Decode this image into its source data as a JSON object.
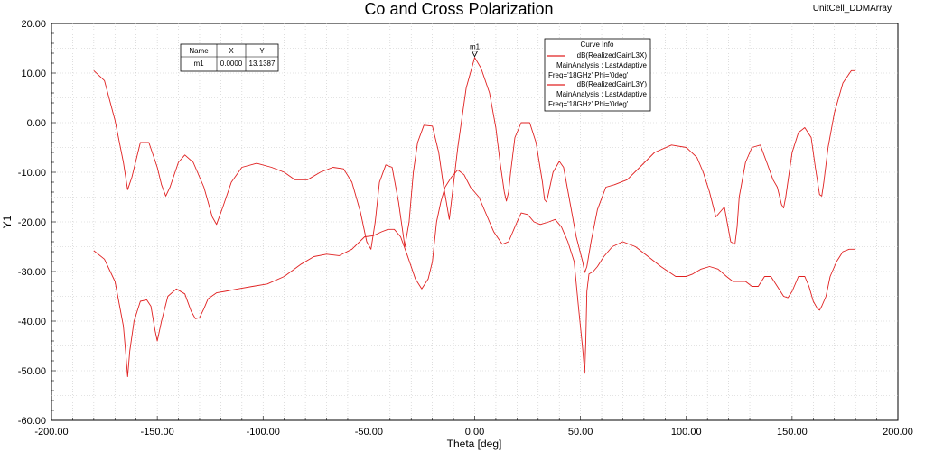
{
  "design_name": "UnitCell_DDMArray",
  "chart_data": {
    "type": "line",
    "title": "Co and Cross Polarization",
    "xlabel": "Theta [deg]",
    "ylabel": "Y1",
    "xlim": [
      -200,
      200
    ],
    "ylim": [
      -60,
      20
    ],
    "x_ticks": [
      -200,
      -150,
      -100,
      -50,
      0,
      50,
      100,
      150,
      200
    ],
    "x_tick_labels": [
      "-200.00",
      "-150.00",
      "-100.00",
      "-50.00",
      "0.00",
      "50.00",
      "100.00",
      "150.00",
      "200.00"
    ],
    "y_ticks": [
      20,
      10,
      0,
      -10,
      -20,
      -30,
      -40,
      -50,
      -60
    ],
    "y_tick_labels": [
      "20.00",
      "10.00",
      "0.00",
      "-10.00",
      "-20.00",
      "-30.00",
      "-40.00",
      "-50.00",
      "-60.00"
    ],
    "grid": true,
    "line_color": "#e02020",
    "series": [
      {
        "name": "dB(RealizedGainL3X)",
        "x": [
          -180,
          -175,
          -170,
          -166,
          -164,
          -162,
          -158,
          -154,
          -150,
          -148,
          -146,
          -144,
          -140,
          -137,
          -133,
          -128,
          -124,
          -122,
          -119,
          -115,
          -110,
          -103,
          -96,
          -90,
          -85,
          -79,
          -73,
          -67,
          -62,
          -58,
          -54,
          -51,
          -49,
          -47,
          -45,
          -42,
          -39,
          -36,
          -33,
          -31,
          -29,
          -27,
          -24,
          -20,
          -17,
          -15,
          -12,
          -8,
          -4,
          0,
          3,
          7,
          10,
          12,
          14,
          15,
          16,
          17,
          19,
          22,
          26,
          29,
          32,
          33,
          34,
          35,
          37,
          40,
          42,
          45,
          48,
          51,
          52,
          53,
          55,
          58,
          62,
          66,
          72,
          78,
          85,
          93,
          100,
          105,
          108,
          111,
          114,
          118,
          121,
          123,
          124,
          125,
          128,
          131,
          135,
          138,
          141,
          143,
          145,
          146,
          147,
          150,
          153,
          156,
          159,
          161,
          163,
          164,
          165,
          167,
          170,
          174,
          178,
          180
        ],
        "y": [
          10.5,
          8.5,
          0.5,
          -8,
          -13.5,
          -11,
          -4,
          -4,
          -9,
          -12.5,
          -14.8,
          -13,
          -8,
          -6.5,
          -8,
          -13,
          -19,
          -20.5,
          -17,
          -12,
          -9,
          -8.2,
          -9,
          -10,
          -11.5,
          -11.5,
          -10,
          -9,
          -9.3,
          -12,
          -18,
          -24,
          -25.5,
          -20,
          -12,
          -8.5,
          -9,
          -16,
          -25,
          -20,
          -10,
          -4,
          -0.5,
          -0.7,
          -6,
          -12,
          -19.5,
          -5,
          7,
          13.1387,
          11,
          6,
          -1,
          -8,
          -14,
          -15.8,
          -14,
          -10,
          -3,
          0,
          0,
          -4,
          -12,
          -15.5,
          -16,
          -14,
          -10,
          -7.8,
          -9,
          -16,
          -23,
          -28,
          -30.2,
          -29,
          -24,
          -17.5,
          -13,
          -12.5,
          -11.5,
          -9,
          -6,
          -4.5,
          -5,
          -7,
          -10,
          -14,
          -19,
          -17,
          -24,
          -24.5,
          -21,
          -15,
          -8,
          -5,
          -4.5,
          -8,
          -11.5,
          -13,
          -16.5,
          -17.2,
          -15,
          -6,
          -2,
          -1,
          -3,
          -9,
          -14.5,
          -14.8,
          -12,
          -5,
          2,
          8,
          10.5,
          10.5
        ]
      },
      {
        "name": "dB(RealizedGainL3Y)",
        "x": [
          -180,
          -175,
          -170,
          -166,
          -165,
          -164,
          -163,
          -161,
          -158,
          -155,
          -153,
          -151,
          -150,
          -148,
          -145,
          -141,
          -137,
          -134,
          -132,
          -130,
          -128,
          -126,
          -122,
          -118,
          -112,
          -105,
          -98,
          -90,
          -82,
          -76,
          -70,
          -64,
          -58,
          -52,
          -48,
          -44,
          -41,
          -38,
          -35,
          -32,
          -30,
          -28,
          -25,
          -22,
          -20,
          -19,
          -18,
          -16,
          -14,
          -11,
          -8,
          -5,
          -2,
          2,
          5,
          9,
          13,
          16,
          18,
          20,
          22,
          25,
          28,
          31,
          35,
          38,
          41,
          44,
          47,
          49,
          51,
          52,
          52.5,
          53,
          54,
          56,
          58,
          61,
          65,
          70,
          76,
          82,
          88,
          95,
          100,
          103,
          107,
          111,
          115,
          119,
          122,
          125,
          128,
          131,
          134,
          137,
          140,
          143,
          146,
          148,
          150,
          153,
          156,
          158,
          160,
          162,
          163,
          164,
          166,
          168,
          171,
          174,
          177,
          180
        ],
        "y": [
          -25.8,
          -27.5,
          -32,
          -41,
          -46,
          -51.2,
          -46,
          -40,
          -36,
          -35.7,
          -37,
          -42,
          -44,
          -40,
          -35,
          -33.5,
          -34.5,
          -38,
          -39.5,
          -39.3,
          -37.5,
          -35.5,
          -34.3,
          -34,
          -33.5,
          -33,
          -32.5,
          -31,
          -28.5,
          -27,
          -26.5,
          -26.8,
          -25.5,
          -23,
          -22.8,
          -22,
          -21.5,
          -21.5,
          -23,
          -26.5,
          -29,
          -31.5,
          -33.5,
          -31.5,
          -28,
          -24,
          -20,
          -16,
          -13,
          -11,
          -9.5,
          -10.5,
          -13,
          -15,
          -18,
          -22,
          -24.5,
          -24,
          -22,
          -20,
          -18.2,
          -18.5,
          -20,
          -20.5,
          -20,
          -19.5,
          -21,
          -24,
          -28,
          -37,
          -45.5,
          -50.5,
          -44,
          -34,
          -30.5,
          -30,
          -29,
          -27,
          -25,
          -24,
          -25,
          -27,
          -29,
          -31,
          -31,
          -30.5,
          -29.5,
          -29,
          -29.5,
          -31,
          -32,
          -32,
          -32,
          -33,
          -33,
          -31,
          -31,
          -33,
          -35,
          -35.3,
          -34,
          -31,
          -31,
          -33,
          -36,
          -37.5,
          -37.8,
          -37,
          -35,
          -31,
          -28,
          -26,
          -25.5,
          -25.5
        ]
      }
    ],
    "marker": {
      "name": "m1",
      "x": 0,
      "y": 13.1387,
      "table_headers": [
        "Name",
        "X",
        "Y"
      ],
      "table_row": [
        "m1",
        "0.0000",
        "13.1387"
      ]
    },
    "legend": {
      "placement": "top-right",
      "title": "Curve Info",
      "entries": [
        {
          "line1": "dB(RealizedGainL3X)",
          "line2": "MainAnalysis : LastAdaptive",
          "line3": "Freq='18GHz' Phi='0deg'"
        },
        {
          "line1": "dB(RealizedGainL3Y)",
          "line2": "MainAnalysis : LastAdaptive",
          "line3": "Freq='18GHz' Phi='0deg'"
        }
      ]
    }
  }
}
